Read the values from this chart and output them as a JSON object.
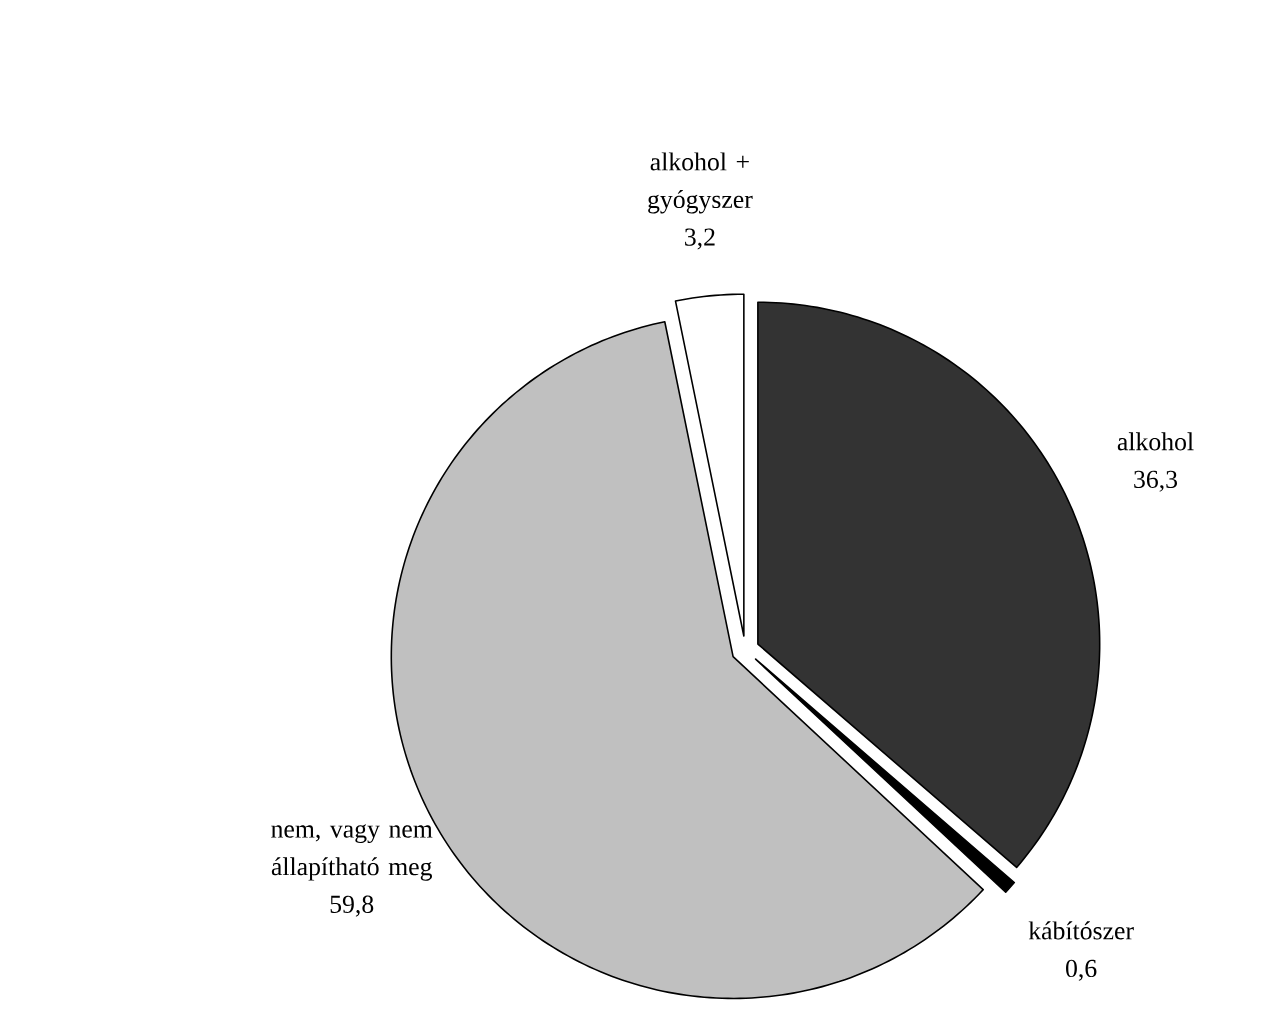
{
  "chart_data": {
    "type": "pie",
    "categories": [
      "alkohol",
      "kábítószer",
      "nem, vagy nem állapítható meg",
      "alkohol + gyógyszer"
    ],
    "values": [
      36.3,
      0.6,
      59.8,
      3.2
    ],
    "colors": [
      "#333333",
      "#000000",
      "#c0c0c0",
      "#ffffff"
    ],
    "value_labels": [
      "36,3",
      "0,6",
      "59,8",
      "3,2"
    ]
  }
}
